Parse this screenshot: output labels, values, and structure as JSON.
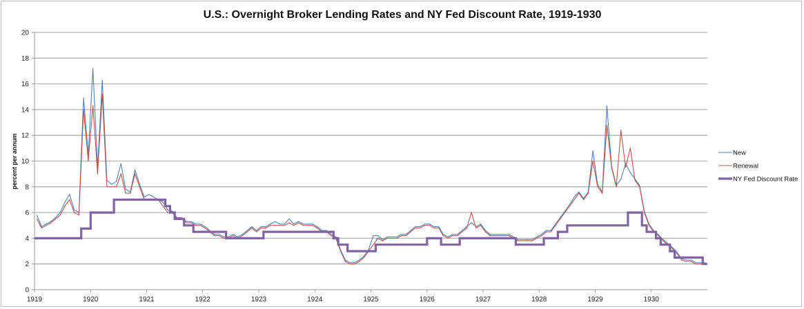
{
  "chart_data": {
    "type": "line",
    "title": "U.S.: Overnight Broker Lending Rates and NY Fed Discount Rate, 1919-1930",
    "xlabel": "",
    "ylabel": "percent per annum",
    "xlim": [
      1919,
      1931
    ],
    "ylim": [
      0,
      20
    ],
    "x_ticks": [
      "1919",
      "1920",
      "1921",
      "1922",
      "1923",
      "1924",
      "1925",
      "1926",
      "1927",
      "1928",
      "1929",
      "1930"
    ],
    "y_ticks": [
      "0",
      "2",
      "4",
      "6",
      "8",
      "10",
      "12",
      "14",
      "16",
      "18",
      "20"
    ],
    "grid": true,
    "legend_position": "right",
    "x_resolution": "monthly, Jan 1919 - Dec 1930",
    "series": [
      {
        "name": "New",
        "color": "#4f81bd",
        "values": [
          5.8,
          4.9,
          5.1,
          5.3,
          5.6,
          6.0,
          6.8,
          7.4,
          6.2,
          6.0,
          14.9,
          10.5,
          17.2,
          9.5,
          16.3,
          8.5,
          8.2,
          8.4,
          9.8,
          7.8,
          7.6,
          9.3,
          8.2,
          7.2,
          7.4,
          7.2,
          7.0,
          6.8,
          6.2,
          6.1,
          5.6,
          5.6,
          5.3,
          5.3,
          5.1,
          5.1,
          4.9,
          4.6,
          4.3,
          4.3,
          4.1,
          4.1,
          4.3,
          4.1,
          4.3,
          4.6,
          4.9,
          4.6,
          4.9,
          4.9,
          5.1,
          5.3,
          5.1,
          5.1,
          5.5,
          5.1,
          5.3,
          5.1,
          5.1,
          5.1,
          4.9,
          4.6,
          4.6,
          4.3,
          4.1,
          3.1,
          2.3,
          2.1,
          2.1,
          2.3,
          2.6,
          3.1,
          4.2,
          4.2,
          3.9,
          4.1,
          4.1,
          4.1,
          4.3,
          4.3,
          4.6,
          4.9,
          4.9,
          5.1,
          5.1,
          4.9,
          4.9,
          4.3,
          4.1,
          4.3,
          4.3,
          4.6,
          4.9,
          5.2,
          4.9,
          5.1,
          4.6,
          4.3,
          4.3,
          4.3,
          4.3,
          4.3,
          4.1,
          3.9,
          3.9,
          3.9,
          3.9,
          4.1,
          4.3,
          4.6,
          4.6,
          5.1,
          5.6,
          6.1,
          6.6,
          7.2,
          7.6,
          7.1,
          7.6,
          10.8,
          8.2,
          7.6,
          14.3,
          9.6,
          8.1,
          8.6,
          9.8,
          9.1,
          8.6,
          8.1,
          6.1,
          5.1,
          4.6,
          4.3,
          3.9,
          3.6,
          3.3,
          2.9,
          2.4,
          2.3,
          2.3,
          2.1,
          2.1,
          2.1
        ]
      },
      {
        "name": "Renewal",
        "color": "#c0504d",
        "values": [
          5.5,
          4.8,
          5.0,
          5.2,
          5.5,
          5.8,
          6.5,
          7.0,
          6.0,
          5.8,
          14.0,
          10.0,
          14.3,
          9.0,
          15.2,
          8.0,
          8.0,
          8.0,
          9.0,
          7.5,
          7.5,
          9.0,
          8.0,
          7.0,
          7.0,
          7.0,
          7.0,
          6.5,
          6.0,
          6.0,
          5.5,
          5.5,
          5.2,
          5.2,
          5.0,
          5.0,
          4.8,
          4.5,
          4.2,
          4.2,
          4.0,
          4.0,
          4.2,
          4.0,
          4.2,
          4.5,
          4.8,
          4.5,
          4.8,
          4.8,
          5.0,
          5.0,
          5.0,
          5.0,
          5.2,
          5.0,
          5.2,
          5.0,
          5.0,
          5.0,
          4.8,
          4.5,
          4.5,
          4.2,
          4.0,
          3.0,
          2.2,
          2.0,
          2.0,
          2.2,
          2.5,
          3.0,
          3.5,
          4.0,
          3.8,
          4.0,
          4.0,
          4.0,
          4.2,
          4.2,
          4.5,
          4.8,
          4.8,
          5.0,
          5.0,
          4.8,
          4.8,
          4.2,
          4.0,
          4.2,
          4.2,
          4.5,
          4.8,
          6.0,
          4.8,
          5.0,
          4.5,
          4.2,
          4.2,
          4.2,
          4.2,
          4.2,
          4.0,
          3.8,
          3.8,
          3.8,
          3.8,
          4.0,
          4.2,
          4.5,
          4.5,
          5.0,
          5.5,
          6.0,
          6.5,
          7.0,
          7.5,
          7.0,
          7.5,
          10.0,
          8.0,
          7.5,
          12.8,
          9.5,
          8.0,
          12.4,
          9.5,
          11.0,
          8.5,
          8.0,
          6.0,
          5.0,
          4.5,
          4.2,
          3.8,
          3.5,
          3.2,
          2.8,
          2.3,
          2.2,
          2.2,
          2.0,
          2.0,
          2.0
        ]
      },
      {
        "name": "NY Fed Discount Rate",
        "color": "#8064a2",
        "steps": [
          [
            "1919-01",
            4
          ],
          [
            "1919-11",
            4.75
          ],
          [
            "1920-01",
            6
          ],
          [
            "1920-06",
            7
          ],
          [
            "1921-05",
            6.5
          ],
          [
            "1921-06",
            6
          ],
          [
            "1921-07",
            5.5
          ],
          [
            "1921-09",
            5
          ],
          [
            "1921-11",
            4.5
          ],
          [
            "1922-06",
            4
          ],
          [
            "1923-02",
            4.5
          ],
          [
            "1924-05",
            4
          ],
          [
            "1924-06",
            3.5
          ],
          [
            "1924-08",
            3
          ],
          [
            "1925-02",
            3.5
          ],
          [
            "1926-01",
            4
          ],
          [
            "1926-04",
            3.5
          ],
          [
            "1926-08",
            4
          ],
          [
            "1927-08",
            3.5
          ],
          [
            "1928-02",
            4
          ],
          [
            "1928-05",
            4.5
          ],
          [
            "1928-07",
            5
          ],
          [
            "1929-08",
            6
          ],
          [
            "1929-11",
            5
          ],
          [
            "1929-12",
            4.5
          ],
          [
            "1930-02",
            4
          ],
          [
            "1930-03",
            3.5
          ],
          [
            "1930-05",
            3
          ],
          [
            "1930-06",
            2.5
          ],
          [
            "1930-12",
            2
          ]
        ],
        "end": "1931-01"
      }
    ]
  }
}
